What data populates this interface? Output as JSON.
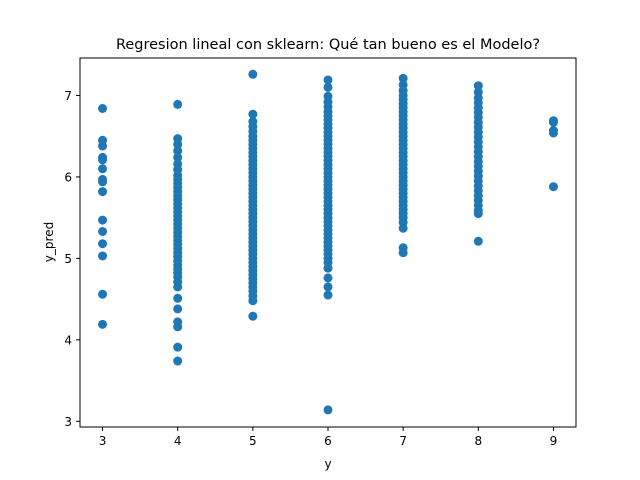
{
  "chart_data": {
    "type": "scatter",
    "title": "Regresion lineal con sklearn: Qué tan bueno es el Modelo?",
    "xlabel": "y",
    "ylabel": "y_pred",
    "xlim": [
      2.7,
      9.3
    ],
    "ylim": [
      2.93,
      7.46
    ],
    "grid": false,
    "legend": "none",
    "point_color": "#1f77b4",
    "x_ticks": [
      {
        "value": 3,
        "label": "3"
      },
      {
        "value": 4,
        "label": "4"
      },
      {
        "value": 5,
        "label": "5"
      },
      {
        "value": 6,
        "label": "6"
      },
      {
        "value": 7,
        "label": "7"
      },
      {
        "value": 8,
        "label": "8"
      },
      {
        "value": 9,
        "label": "9"
      }
    ],
    "y_ticks": [
      {
        "value": 3,
        "label": "3"
      },
      {
        "value": 4,
        "label": "4"
      },
      {
        "value": 5,
        "label": "5"
      },
      {
        "value": 6,
        "label": "6"
      },
      {
        "value": 7,
        "label": "7"
      }
    ],
    "series": [
      {
        "x": 3,
        "y": [
          6.84,
          6.45,
          6.38,
          6.24,
          6.21,
          6.1,
          5.97,
          5.94,
          5.82,
          5.47,
          5.33,
          5.18,
          5.03,
          4.56,
          4.19
        ]
      },
      {
        "x": 4,
        "y": [
          6.89,
          6.47,
          6.4,
          6.32,
          6.24,
          6.16,
          6.09,
          6.02,
          5.97,
          5.92,
          5.87,
          5.82,
          5.77,
          5.72,
          5.67,
          5.62,
          5.57,
          5.52,
          5.47,
          5.42,
          5.37,
          5.32,
          5.27,
          5.22,
          5.17,
          5.12,
          5.07,
          5.02,
          4.97,
          4.92,
          4.87,
          4.82,
          4.77,
          4.71,
          4.65,
          4.51,
          4.38,
          4.22,
          4.16,
          3.91,
          3.74
        ]
      },
      {
        "x": 5,
        "y": [
          7.26,
          6.77,
          6.68,
          6.62,
          6.56,
          6.5,
          6.45,
          6.4,
          6.35,
          6.3,
          6.25,
          6.2,
          6.15,
          6.1,
          6.05,
          6.0,
          5.95,
          5.9,
          5.85,
          5.8,
          5.75,
          5.7,
          5.65,
          5.6,
          5.55,
          5.5,
          5.45,
          5.4,
          5.35,
          5.3,
          5.25,
          5.2,
          5.15,
          5.1,
          5.05,
          5.0,
          4.95,
          4.9,
          4.85,
          4.8,
          4.75,
          4.7,
          4.65,
          4.6,
          4.54,
          4.48,
          4.29
        ]
      },
      {
        "x": 6,
        "y": [
          7.19,
          7.1,
          6.99,
          6.92,
          6.86,
          6.8,
          6.75,
          6.7,
          6.65,
          6.6,
          6.55,
          6.5,
          6.45,
          6.4,
          6.35,
          6.3,
          6.25,
          6.2,
          6.15,
          6.1,
          6.05,
          6.0,
          5.95,
          5.9,
          5.85,
          5.8,
          5.75,
          5.7,
          5.65,
          5.6,
          5.55,
          5.5,
          5.45,
          5.4,
          5.35,
          5.3,
          5.25,
          5.2,
          5.15,
          5.1,
          5.05,
          5.0,
          4.95,
          4.88,
          4.76,
          4.65,
          4.55,
          3.14
        ]
      },
      {
        "x": 7,
        "y": [
          7.21,
          7.13,
          7.06,
          7.0,
          6.95,
          6.9,
          6.85,
          6.8,
          6.75,
          6.7,
          6.65,
          6.6,
          6.55,
          6.5,
          6.45,
          6.4,
          6.35,
          6.3,
          6.25,
          6.2,
          6.15,
          6.1,
          6.05,
          6.0,
          5.95,
          5.9,
          5.85,
          5.8,
          5.75,
          5.7,
          5.65,
          5.6,
          5.55,
          5.5,
          5.44,
          5.37,
          5.13,
          5.07
        ]
      },
      {
        "x": 8,
        "y": [
          7.12,
          7.04,
          6.97,
          6.91,
          6.85,
          6.79,
          6.73,
          6.67,
          6.61,
          6.55,
          6.49,
          6.43,
          6.37,
          6.31,
          6.25,
          6.19,
          6.13,
          6.07,
          6.01,
          5.95,
          5.89,
          5.83,
          5.77,
          5.71,
          5.65,
          5.59,
          5.55,
          5.21
        ]
      },
      {
        "x": 9,
        "y": [
          6.69,
          6.67,
          6.57,
          6.54,
          5.88
        ]
      }
    ]
  }
}
